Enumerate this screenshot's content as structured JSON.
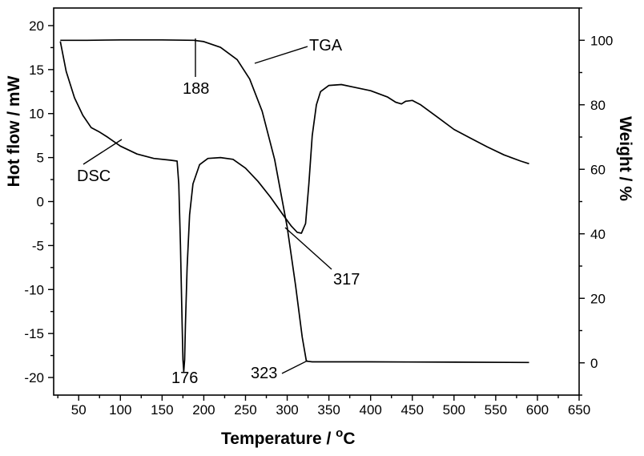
{
  "chart_data": {
    "type": "line",
    "xlabel": "Temperature / ",
    "xlabel_sup": "o",
    "xlabel_unit": "C",
    "ylabel_left": "Hot flow / mW",
    "ylabel_right": "Weight / %",
    "xlim": [
      20,
      650
    ],
    "ylim_left": [
      -22,
      22
    ],
    "ylim_right": [
      -10,
      110
    ],
    "x_ticks": [
      50,
      100,
      150,
      200,
      250,
      300,
      350,
      400,
      450,
      500,
      550,
      600,
      650
    ],
    "y_left_ticks": [
      -20,
      -15,
      -10,
      -5,
      0,
      5,
      10,
      15,
      20
    ],
    "y_right_ticks": [
      0,
      20,
      40,
      60,
      80,
      100
    ],
    "grid": false,
    "series": [
      {
        "name": "DSC",
        "axis": "left",
        "x": [
          28,
          35,
          45,
          55,
          65,
          75,
          85,
          100,
          120,
          140,
          160,
          168,
          170,
          172,
          174,
          175,
          176,
          177,
          178,
          180,
          183,
          187,
          195,
          205,
          220,
          235,
          250,
          265,
          280,
          295,
          305,
          312,
          317,
          322,
          326,
          330,
          335,
          340,
          350,
          365,
          380,
          400,
          420,
          430,
          437,
          442,
          450,
          460,
          480,
          500,
          520,
          540,
          560,
          580,
          590
        ],
        "y": [
          18.2,
          14.8,
          11.8,
          9.8,
          8.4,
          7.9,
          7.3,
          6.3,
          5.4,
          4.9,
          4.7,
          4.6,
          2.0,
          -5.0,
          -14.0,
          -18.0,
          -19.3,
          -18.0,
          -14.0,
          -7.5,
          -1.5,
          2.0,
          4.2,
          4.9,
          5.0,
          4.8,
          3.8,
          2.3,
          0.5,
          -1.5,
          -2.8,
          -3.5,
          -3.6,
          -2.5,
          2.0,
          7.5,
          11.0,
          12.5,
          13.2,
          13.3,
          13.0,
          12.6,
          11.9,
          11.3,
          11.1,
          11.4,
          11.5,
          11.0,
          9.6,
          8.2,
          7.2,
          6.2,
          5.3,
          4.6,
          4.3
        ]
      },
      {
        "name": "TGA",
        "axis": "right",
        "x": [
          28,
          60,
          100,
          150,
          188,
          200,
          220,
          240,
          255,
          270,
          285,
          300,
          310,
          318,
          323,
          330,
          400,
          500,
          590
        ],
        "y": [
          100,
          100,
          100.1,
          100.1,
          100,
          99.6,
          97.8,
          94.0,
          88.0,
          78.0,
          63.0,
          42.0,
          24.0,
          8.0,
          0.5,
          0.3,
          0.3,
          0.2,
          0.1
        ]
      }
    ],
    "annotations": [
      {
        "text": "TGA"
      },
      {
        "text": "188"
      },
      {
        "text": "DSC"
      },
      {
        "text": "317"
      },
      {
        "text": "176"
      },
      {
        "text": "323"
      }
    ]
  }
}
